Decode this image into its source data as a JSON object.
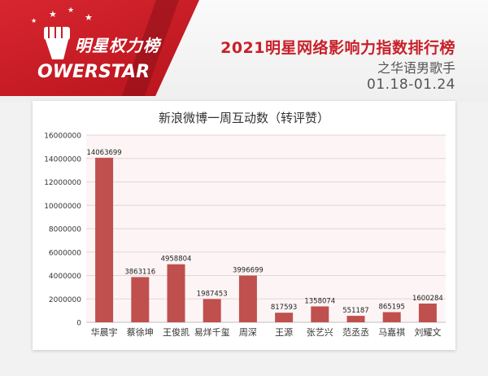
{
  "header": {
    "logo_cn": "明星权力榜",
    "logo_en": "OWERSTAR",
    "title": "2021明星网络影响力指数排行榜",
    "subtitle": "之华语男歌手",
    "date_range": "01.18-01.24"
  },
  "colors": {
    "brand_red": "#c8202a",
    "bar": "#c0504d",
    "plot_bg": "#fdf5f5",
    "grid": "#e6d4d4"
  },
  "chart_data": {
    "type": "bar",
    "title": "新浪微博一周互动数（转评赞）",
    "categories": [
      "华晨宇",
      "蔡徐坤",
      "王俊凯",
      "易烊千玺",
      "周深",
      "王源",
      "张艺兴",
      "范丞丞",
      "马嘉祺",
      "刘耀文"
    ],
    "values": [
      14063699,
      3863116,
      4958804,
      1987453,
      3996699,
      817593,
      1358074,
      551187,
      865195,
      1600284
    ],
    "value_labels": [
      "14063699",
      "3863116",
      "4958804",
      "1987453",
      "3996699",
      "817593",
      "1358074",
      "551187",
      "865195",
      "1600284"
    ],
    "ylim": [
      0,
      16000000
    ],
    "yticks": [
      0,
      2000000,
      4000000,
      6000000,
      8000000,
      10000000,
      12000000,
      14000000,
      16000000
    ],
    "ytick_labels": [
      "0",
      "2000000",
      "4000000",
      "6000000",
      "8000000",
      "10000000",
      "12000000",
      "14000000",
      "16000000"
    ],
    "grid": true,
    "xlabel": "",
    "ylabel": ""
  }
}
